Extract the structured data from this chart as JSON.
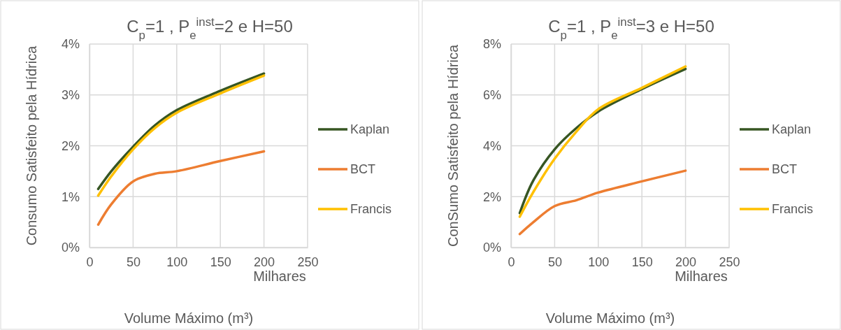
{
  "chart_data": [
    {
      "type": "line",
      "title": "C$_{p}$=1 , P$_{e}$$^{inst}$=2 e H=50",
      "xlabel": "Volume Máximo (m³)",
      "ylabel": "Consumo Satisfeito pela Hídrica",
      "annotations": [
        "Milhares"
      ],
      "x": [
        10,
        25,
        50,
        75,
        100,
        150,
        200
      ],
      "series": [
        {
          "name": "Kaplan",
          "color": "#375623",
          "values": [
            1.15,
            1.5,
            1.98,
            2.4,
            2.7,
            3.08,
            3.42
          ]
        },
        {
          "name": "BCT",
          "color": "#ed7d31",
          "values": [
            0.45,
            0.85,
            1.3,
            1.45,
            1.5,
            1.7,
            1.89
          ]
        },
        {
          "name": "Francis",
          "color": "#ffc000",
          "values": [
            1.02,
            1.4,
            1.93,
            2.35,
            2.65,
            3.03,
            3.38
          ]
        }
      ],
      "xlim": [
        0,
        250
      ],
      "xticks": [
        0,
        50,
        100,
        150,
        200,
        250
      ],
      "ylim": [
        0,
        4
      ],
      "yticks": [
        {
          "value": 0,
          "label": "0%"
        },
        {
          "value": 1,
          "label": "1%"
        },
        {
          "value": 2,
          "label": "2%"
        },
        {
          "value": 3,
          "label": "3%"
        },
        {
          "value": 4,
          "label": "4%"
        }
      ],
      "grid": true,
      "legend": "right",
      "marker": "none",
      "line_style": "solid"
    },
    {
      "type": "line",
      "title": "C$_{p}$=1 , P$_{e}$$^{inst}$=3 e H=50",
      "xlabel": "Volume Máximo (m³)",
      "ylabel": "ConSumo Satisfeito pela Hídrica",
      "annotations": [
        "Milhares"
      ],
      "x": [
        10,
        25,
        50,
        75,
        100,
        150,
        200
      ],
      "series": [
        {
          "name": "Kaplan",
          "color": "#375623",
          "values": [
            1.35,
            2.6,
            3.86,
            4.7,
            5.35,
            6.23,
            7.02
          ]
        },
        {
          "name": "BCT",
          "color": "#ed7d31",
          "values": [
            0.53,
            0.98,
            1.63,
            1.86,
            2.16,
            2.6,
            3.02
          ]
        },
        {
          "name": "Francis",
          "color": "#ffc000",
          "values": [
            1.21,
            2.15,
            3.49,
            4.56,
            5.44,
            6.28,
            7.12
          ]
        }
      ],
      "xlim": [
        0,
        250
      ],
      "xticks": [
        0,
        50,
        100,
        150,
        200,
        250
      ],
      "ylim": [
        0,
        8
      ],
      "yticks": [
        {
          "value": 0,
          "label": "0%"
        },
        {
          "value": 2,
          "label": "2%"
        },
        {
          "value": 4,
          "label": "4%"
        },
        {
          "value": 6,
          "label": "6%"
        },
        {
          "value": 8,
          "label": "8%"
        }
      ],
      "grid": true,
      "legend": "right",
      "marker": "none",
      "line_style": "solid"
    }
  ]
}
